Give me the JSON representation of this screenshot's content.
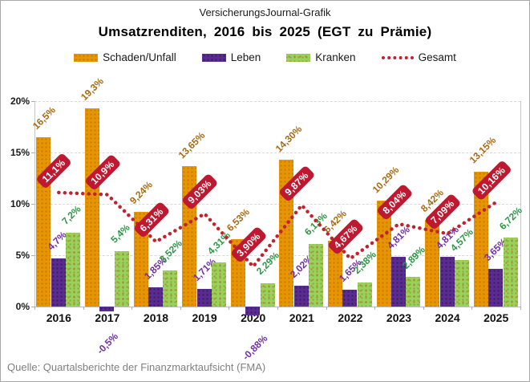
{
  "branding": "VersicherungsJournal-Grafik",
  "header": {
    "title": "Umsatzrenditen, 2016 bis 2025 (EGT zu Prämie)"
  },
  "source_note": "Quelle: Quartalsberichte der Finanzmarktaufsicht (FMA)",
  "y_axis": {
    "tick_labels": [
      "0%",
      "5%",
      "10%",
      "15%",
      "20%"
    ],
    "min": 0,
    "max": 20
  },
  "colors": {
    "schaden_unfall": "#E79502",
    "leben": "#5B2C90",
    "kranken": "#9CD05A",
    "gesamt": "#C0222E",
    "badge_background": "#BE1931",
    "label_schaden_unfall": "#A86A14",
    "label_leben": "#7030A0",
    "label_kranken": "#2E9646",
    "source_text": "#7F7F7F"
  },
  "chart_data": {
    "type": "bar",
    "title": "Umsatzrenditen, 2016 bis 2025 (EGT zu Prämie)",
    "categories": [
      "2016",
      "2017",
      "2018",
      "2019",
      "2020",
      "2021",
      "2022",
      "2023",
      "2024",
      "2025"
    ],
    "ylim": [
      0,
      20
    ],
    "ytick_labels": [
      "0%",
      "5%",
      "10%",
      "15%",
      "20%"
    ],
    "grid": true,
    "legend_position": "top",
    "series": [
      {
        "name": "Schaden/Unfall",
        "kind": "bar",
        "color": "#E79502",
        "label_color": "#A86A14",
        "values": [
          16.5,
          19.3,
          9.24,
          13.65,
          6.53,
          14.3,
          6.42,
          10.29,
          8.42,
          13.15
        ],
        "labels": [
          "16,5%",
          "19,3%",
          "9,24%",
          "13,65%",
          "6,53%",
          "14,30%",
          "6,42%",
          "10,29%",
          "8,42%",
          "13,15%"
        ]
      },
      {
        "name": "Leben",
        "kind": "bar",
        "color": "#5B2C90",
        "label_color": "#7030A0",
        "values": [
          4.7,
          -0.5,
          1.85,
          1.71,
          -0.88,
          2.02,
          1.65,
          4.81,
          4.81,
          3.65
        ],
        "labels": [
          "4,7%",
          "-0,5%",
          "1,85%",
          "1,71%",
          "-0,88%",
          "2,02%",
          "1,65%",
          "4,81%",
          "4,81%",
          "3,65%"
        ]
      },
      {
        "name": "Kranken",
        "kind": "bar",
        "color": "#9CD05A",
        "label_color": "#2E9646",
        "values": [
          7.2,
          5.4,
          3.52,
          4.31,
          2.29,
          6.13,
          2.38,
          2.89,
          4.57,
          6.72
        ],
        "labels": [
          "7,2%",
          "5,4%",
          "3,52%",
          "4,31%",
          "2,29%",
          "6,13%",
          "2,38%",
          "2,89%",
          "4,57%",
          "6,72%"
        ]
      },
      {
        "name": "Gesamt",
        "kind": "line",
        "color": "#C0222E",
        "label_color": "#FFFFFF",
        "values": [
          11.1,
          10.9,
          6.31,
          9.03,
          3.9,
          9.87,
          4.67,
          8.04,
          7.09,
          10.16
        ],
        "labels": [
          "11,1%",
          "10,9%",
          "6,31%",
          "9,03%",
          "3,90%",
          "9,87%",
          "4,67%",
          "8,04%",
          "7,09%",
          "10,16%"
        ]
      }
    ]
  }
}
